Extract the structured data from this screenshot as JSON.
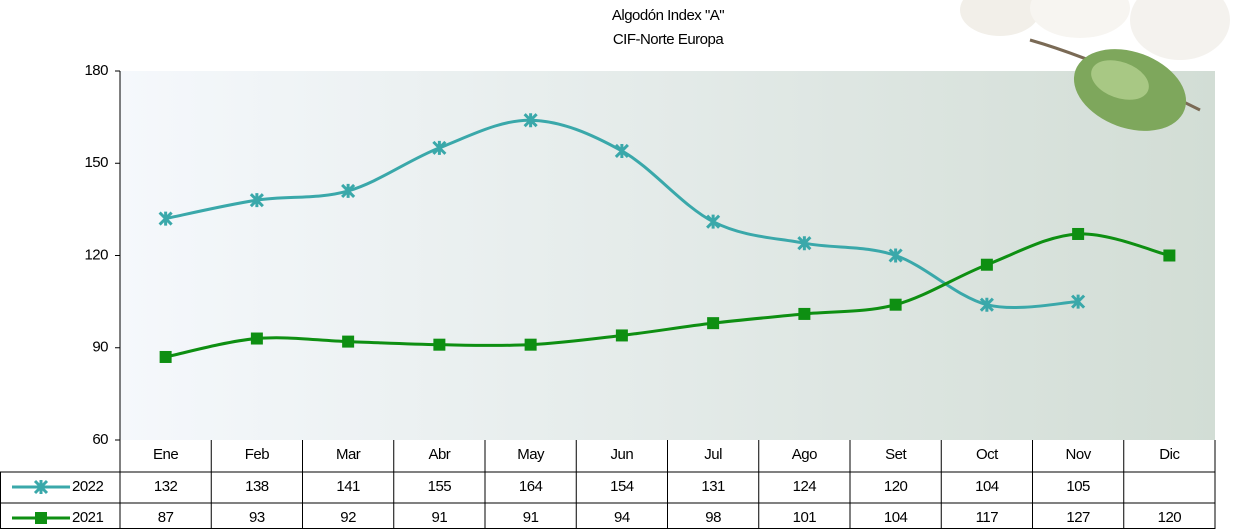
{
  "chart_data": {
    "type": "line",
    "title": [
      "Algodón Index \"A\"",
      "CIF-Norte Europa"
    ],
    "categories": [
      "Ene",
      "Feb",
      "Mar",
      "Abr",
      "May",
      "Jun",
      "Jul",
      "Ago",
      "Set",
      "Oct",
      "Nov",
      "Dic"
    ],
    "series": [
      {
        "name": "2022",
        "color": "#3aa8aa",
        "marker": "x",
        "values": [
          132,
          138,
          141,
          155,
          164,
          154,
          131,
          124,
          120,
          104,
          105,
          null
        ]
      },
      {
        "name": "2021",
        "color": "#0e8f12",
        "marker": "square",
        "values": [
          87,
          93,
          92,
          91,
          91,
          94,
          98,
          101,
          104,
          117,
          127,
          120
        ]
      }
    ],
    "ylim": [
      60,
      180
    ],
    "yticks": [
      60,
      90,
      120,
      150,
      180
    ],
    "smooth": true,
    "data_table": true
  }
}
